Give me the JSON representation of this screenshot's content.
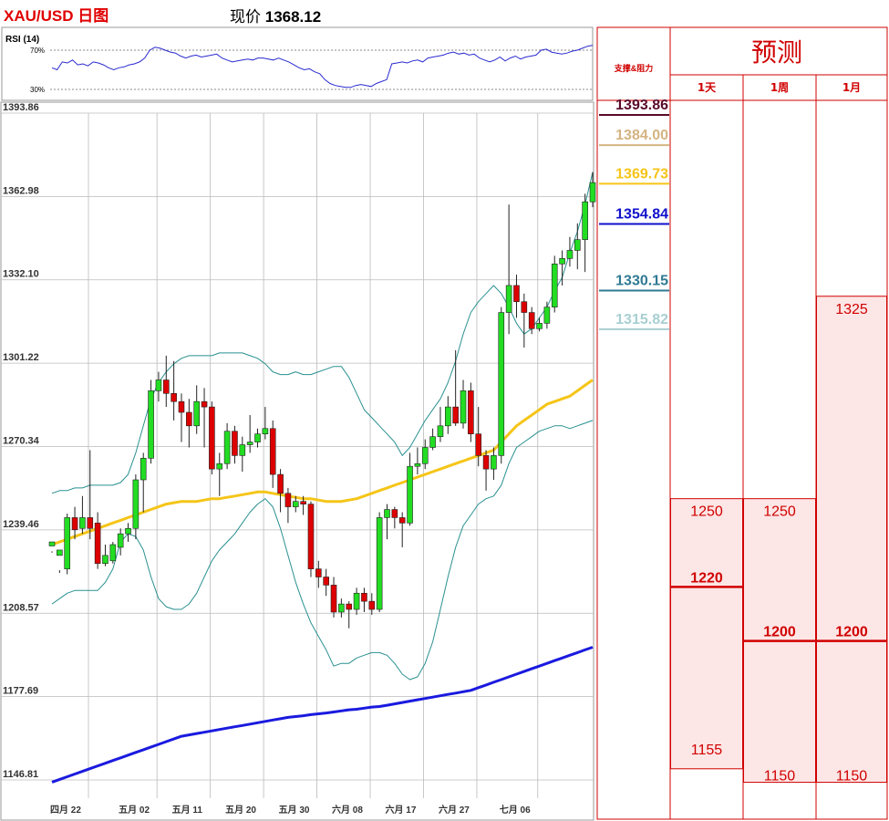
{
  "header": {
    "title": "XAU/USD 日图",
    "price_label": "现价",
    "price_value": "1368.12"
  },
  "colors": {
    "bull": "#22dd22",
    "bear": "#dd0000",
    "ma_short": "#f5c518",
    "ma_long": "#1a1adf",
    "bollinger": "#2a9090",
    "grid": "#bbbbbb",
    "table_border": "#d00000",
    "forecast_fill": "#fde6e6"
  },
  "rsi": {
    "label": "RSI (14)",
    "levels": [
      "70%",
      "30%"
    ],
    "level_values": [
      70,
      30
    ],
    "values": [
      52,
      50,
      58,
      57,
      60,
      55,
      56,
      54,
      58,
      57,
      55,
      52,
      50,
      52,
      53,
      55,
      56,
      58,
      62,
      70,
      73,
      72,
      70,
      68,
      67,
      64,
      62,
      64,
      65,
      63,
      64,
      65,
      66,
      62,
      60,
      58,
      59,
      60,
      61,
      60,
      62,
      62,
      61,
      60,
      62,
      60,
      58,
      55,
      52,
      50,
      51,
      48,
      46,
      40,
      36,
      34,
      33,
      32,
      32,
      34,
      35,
      34,
      33,
      36,
      38,
      40,
      56,
      57,
      58,
      57,
      59,
      60,
      58,
      62,
      63,
      64,
      65,
      67,
      68,
      66,
      67,
      65,
      66,
      62,
      60,
      58,
      60,
      63,
      59,
      62,
      64,
      61,
      63,
      64,
      65,
      70,
      71,
      68,
      67,
      66,
      67,
      69,
      70,
      72,
      74,
      75
    ]
  },
  "chart_data": {
    "type": "candlestick",
    "title": "XAU/USD 日图",
    "y_ticks": [
      "1393.86",
      "1362.98",
      "1332.10",
      "1301.22",
      "1270.34",
      "1239.46",
      "1208.57",
      "1177.69",
      "1146.81"
    ],
    "y_tick_values": [
      1393.86,
      1362.98,
      1332.1,
      1301.22,
      1270.34,
      1239.46,
      1208.57,
      1177.69,
      1146.81
    ],
    "ylim": [
      1146.81,
      1393.86
    ],
    "x_ticks": [
      "四月 22",
      "五月 02",
      "五月 11",
      "五月 20",
      "五月 30",
      "六月 08",
      "六月 17",
      "六月 27",
      "七月 06"
    ],
    "x_tick_index": [
      0,
      9,
      16,
      23,
      30,
      37,
      44,
      51,
      59
    ],
    "candles": [
      [
        1233.5,
        1235.0,
        1231.5,
        1231.0
      ],
      [
        1230.0,
        1232.0,
        1224.5,
        1223.5
      ],
      [
        1225.0,
        1244.0,
        1245.5,
        1223.0
      ],
      [
        1244.0,
        1239.5,
        1248.0,
        1236.0
      ],
      [
        1240.0,
        1244.0,
        1252.0,
        1238.0
      ],
      [
        1244.0,
        1240.0,
        1269.0,
        1236.0
      ],
      [
        1242.0,
        1227.0,
        1246.0,
        1225.0
      ],
      [
        1227.0,
        1230.0,
        1234.0,
        1226.0
      ],
      [
        1228.0,
        1234.0,
        1235.0,
        1227.0
      ],
      [
        1233.0,
        1238.0,
        1240.0,
        1230.0
      ],
      [
        1238.0,
        1240.0,
        1242.0,
        1235.0
      ],
      [
        1240.0,
        1258.0,
        1260.0,
        1236.0
      ],
      [
        1258.0,
        1266.0,
        1268.0,
        1246.0
      ],
      [
        1266.0,
        1291.0,
        1295.0,
        1264.0
      ],
      [
        1291.0,
        1295.0,
        1298.0,
        1287.0
      ],
      [
        1295.0,
        1290.0,
        1304.0,
        1285.0
      ],
      [
        1290.0,
        1287.0,
        1302.0,
        1280.0
      ],
      [
        1287.0,
        1283.0,
        1290.0,
        1272.0
      ],
      [
        1283.0,
        1278.0,
        1288.0,
        1270.0
      ],
      [
        1278.0,
        1287.0,
        1293.0,
        1275.0
      ],
      [
        1287.0,
        1285.0,
        1292.0,
        1270.0
      ],
      [
        1285.0,
        1262.0,
        1287.0,
        1260.0
      ],
      [
        1262.0,
        1264.0,
        1268.0,
        1252.0
      ],
      [
        1264.0,
        1276.0,
        1279.0,
        1262.0
      ],
      [
        1276.0,
        1267.0,
        1278.0,
        1264.0
      ],
      [
        1267.0,
        1271.0,
        1274.0,
        1261.0
      ],
      [
        1271.0,
        1272.0,
        1282.0,
        1268.0
      ],
      [
        1272.0,
        1275.0,
        1277.0,
        1270.0
      ],
      [
        1275.0,
        1277.0,
        1285.0,
        1273.0
      ],
      [
        1277.0,
        1260.0,
        1280.0,
        1255.0
      ],
      [
        1260.0,
        1253.0,
        1262.0,
        1246.0
      ],
      [
        1253.0,
        1248.0,
        1255.0,
        1242.0
      ],
      [
        1248.0,
        1250.0,
        1252.0,
        1246.0
      ],
      [
        1250.0,
        1249.0,
        1252.0,
        1245.0
      ],
      [
        1249.0,
        1225.0,
        1250.0,
        1222.0
      ],
      [
        1225.0,
        1222.0,
        1228.0,
        1218.0
      ],
      [
        1222.0,
        1219.0,
        1225.0,
        1215.0
      ],
      [
        1219.0,
        1209.0,
        1222.0,
        1207.0
      ],
      [
        1209.0,
        1212.0,
        1214.0,
        1207.0
      ],
      [
        1212.0,
        1210.0,
        1213.0,
        1203.0
      ],
      [
        1210.0,
        1216.0,
        1218.0,
        1208.0
      ],
      [
        1216.0,
        1213.0,
        1218.0,
        1209.0
      ],
      [
        1213.0,
        1210.0,
        1216.0,
        1208.0
      ],
      [
        1210.0,
        1244.0,
        1246.0,
        1209.0
      ],
      [
        1244.0,
        1247.0,
        1249.0,
        1236.0
      ],
      [
        1247.0,
        1244.0,
        1248.0,
        1240.0
      ],
      [
        1244.0,
        1242.0,
        1246.0,
        1233.0
      ],
      [
        1242.0,
        1263.0,
        1268.0,
        1241.0
      ],
      [
        1263.0,
        1264.0,
        1270.0,
        1260.0
      ],
      [
        1264.0,
        1270.0,
        1273.0,
        1262.0
      ],
      [
        1270.0,
        1274.0,
        1277.0,
        1269.0
      ],
      [
        1274.0,
        1278.0,
        1285.0,
        1272.0
      ],
      [
        1278.0,
        1285.0,
        1289.0,
        1275.0
      ],
      [
        1285.0,
        1279.0,
        1306.0,
        1278.0
      ],
      [
        1279.0,
        1291.0,
        1295.0,
        1277.0
      ],
      [
        1291.0,
        1275.0,
        1294.0,
        1272.0
      ],
      [
        1275.0,
        1267.0,
        1285.0,
        1263.0
      ],
      [
        1267.0,
        1262.0,
        1269.0,
        1254.0
      ],
      [
        1262.0,
        1267.0,
        1270.0,
        1258.0
      ],
      [
        1267.0,
        1320.0,
        1322.0,
        1264.0
      ],
      [
        1320.0,
        1330.0,
        1360.0,
        1312.0
      ],
      [
        1330.0,
        1324.0,
        1334.0,
        1318.0
      ],
      [
        1324.0,
        1320.0,
        1327.0,
        1307.0
      ],
      [
        1320.0,
        1314.0,
        1322.0,
        1312.0
      ],
      [
        1314.0,
        1316.0,
        1318.0,
        1313.0
      ],
      [
        1316.0,
        1322.0,
        1324.0,
        1314.0
      ],
      [
        1322.0,
        1338.0,
        1341.0,
        1320.0
      ],
      [
        1338.0,
        1340.0,
        1343.0,
        1330.0
      ],
      [
        1340.0,
        1343.0,
        1348.0,
        1337.0
      ],
      [
        1343.0,
        1347.0,
        1353.0,
        1336.0
      ],
      [
        1347.0,
        1361.0,
        1364.0,
        1335.0
      ],
      [
        1361.0,
        1368.12,
        1372.0,
        1359.0
      ]
    ],
    "ma_short": [
      1234,
      1235,
      1236,
      1237,
      1238,
      1239,
      1240,
      1241,
      1242,
      1243,
      1244,
      1245,
      1246,
      1247,
      1248,
      1249,
      1249.5,
      1250,
      1250,
      1250,
      1250.5,
      1251,
      1251,
      1251.5,
      1252,
      1252.5,
      1253,
      1253.5,
      1253.5,
      1253,
      1252.5,
      1252,
      1251.5,
      1251,
      1251,
      1250.5,
      1250,
      1250,
      1250,
      1250.5,
      1251,
      1252,
      1253,
      1254,
      1255,
      1256,
      1257,
      1258,
      1259,
      1260,
      1261,
      1262,
      1263,
      1264,
      1265,
      1266,
      1267,
      1268,
      1269,
      1272,
      1275,
      1278,
      1280,
      1282,
      1284,
      1286,
      1287,
      1288,
      1289,
      1291,
      1293,
      1295
    ],
    "ma_long": [
      1146,
      1147,
      1148,
      1149,
      1150,
      1151,
      1152,
      1153,
      1154,
      1155,
      1156,
      1157,
      1158,
      1159,
      1160,
      1161,
      1162,
      1163,
      1163.5,
      1164,
      1164.5,
      1165,
      1165.5,
      1166,
      1166.5,
      1167,
      1167.5,
      1168,
      1168.5,
      1169,
      1169.5,
      1170,
      1170.3,
      1170.6,
      1171,
      1171.3,
      1171.6,
      1172,
      1172.4,
      1172.8,
      1173,
      1173.4,
      1173.8,
      1174,
      1174.5,
      1175,
      1175.5,
      1176,
      1176.5,
      1177,
      1177.5,
      1178,
      1178.5,
      1179,
      1179.5,
      1180,
      1181,
      1182,
      1183,
      1184,
      1185,
      1186,
      1187,
      1188,
      1189,
      1190,
      1191,
      1192,
      1193,
      1194,
      1195,
      1196
    ],
    "boll_upper": [
      1253,
      1254,
      1254,
      1255,
      1255,
      1256,
      1256,
      1256,
      1256,
      1257,
      1260,
      1268,
      1278,
      1288,
      1294,
      1298,
      1301,
      1303,
      1304,
      1304,
      1304,
      1304,
      1305,
      1305,
      1305,
      1305,
      1304,
      1303,
      1301,
      1298,
      1297,
      1297,
      1298,
      1297,
      1297,
      1298,
      1299,
      1300,
      1300,
      1296,
      1290,
      1284,
      1281,
      1278,
      1275,
      1272,
      1267,
      1270,
      1275,
      1280,
      1284,
      1288,
      1294,
      1302,
      1312,
      1320,
      1324,
      1327,
      1330,
      1327,
      1322,
      1316,
      1312,
      1314,
      1318,
      1322,
      1328,
      1333,
      1342,
      1350,
      1360,
      1372
    ],
    "boll_lower": [
      1212,
      1214,
      1216,
      1217,
      1217,
      1217,
      1217,
      1220,
      1225,
      1235,
      1238,
      1237,
      1232,
      1222,
      1214,
      1211,
      1210,
      1210,
      1212,
      1216,
      1222,
      1228,
      1232,
      1235,
      1238,
      1242,
      1246,
      1249,
      1251,
      1248,
      1240,
      1230,
      1220,
      1212,
      1205,
      1200,
      1195,
      1189,
      1190,
      1190,
      1192,
      1193,
      1194,
      1194,
      1193,
      1190,
      1186,
      1184,
      1185,
      1190,
      1198,
      1210,
      1222,
      1233,
      1241,
      1245,
      1249,
      1251,
      1252,
      1256,
      1264,
      1270,
      1272,
      1274,
      1276,
      1277,
      1278,
      1278,
      1277,
      1278,
      1279,
      1280
    ],
    "forecast_table": {
      "left_header": "支撑&阻力",
      "title": "预测",
      "columns": [
        "1天",
        "1周",
        "1月"
      ],
      "levels": [
        {
          "label": "1393.86",
          "value": 1393.86,
          "color": "#5a0a2a"
        },
        {
          "label": "1384.00",
          "value": 1384.0,
          "color": "#d4b483"
        },
        {
          "label": "1369.73",
          "value": 1369.73,
          "color": "#f5c518"
        },
        {
          "label": "1354.84",
          "value": 1354.84,
          "color": "#1010cc"
        },
        {
          "label": "1330.15",
          "value": 1330.15,
          "color": "#2f7a93"
        },
        {
          "label": "1315.82",
          "value": 1315.82,
          "color": "#a8cfd2"
        }
      ],
      "day": {
        "upper": "1250",
        "mid": "1220",
        "lower": "1155",
        "upper_v": 1250,
        "mid_v": 1220,
        "lower_v": 1155
      },
      "week": {
        "upper": "1250",
        "mid": "1200",
        "lower": "1150",
        "upper_v": 1250,
        "mid_v": 1200,
        "lower_v": 1150
      },
      "month": {
        "upper": "1325",
        "mid": "1200",
        "lower": "1150",
        "upper_v": 1325,
        "mid_v": 1200,
        "lower_v": 1150
      }
    }
  }
}
